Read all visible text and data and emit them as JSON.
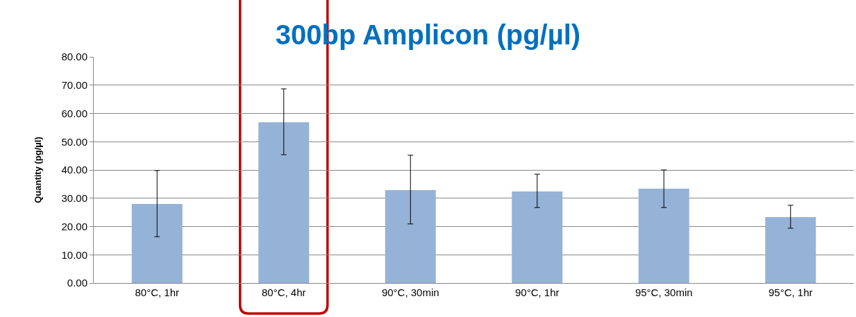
{
  "chart_data": {
    "type": "bar",
    "title": "300bp Amplicon (pg/µl)",
    "ylabel": "Quantity (pg/µl)",
    "categories": [
      "80°C, 1hr",
      "80°C, 4hr",
      "90°C, 30min",
      "90°C, 1hr",
      "95°C, 30min",
      "95°C, 1hr"
    ],
    "values": [
      28.0,
      56.9,
      32.9,
      32.4,
      33.4,
      23.3
    ],
    "errors": [
      [
        16.4,
        39.8
      ],
      [
        45.4,
        68.7
      ],
      [
        20.9,
        45.2
      ],
      [
        26.7,
        38.5
      ],
      [
        26.7,
        40.0
      ],
      [
        19.4,
        27.5
      ]
    ],
    "color": "#95b3d7",
    "ylim": [
      0,
      80
    ],
    "yticks": [
      {
        "value": 0,
        "label": "0.00"
      },
      {
        "value": 10,
        "label": "10.00"
      },
      {
        "value": 20,
        "label": "20.00"
      },
      {
        "value": 30,
        "label": "30.00"
      },
      {
        "value": 40,
        "label": "40.00"
      },
      {
        "value": 50,
        "label": "50.00"
      },
      {
        "value": 60,
        "label": "60.00"
      },
      {
        "value": 70,
        "label": "70.00"
      },
      {
        "value": 80,
        "label": "80.00"
      }
    ],
    "grid": "y"
  }
}
